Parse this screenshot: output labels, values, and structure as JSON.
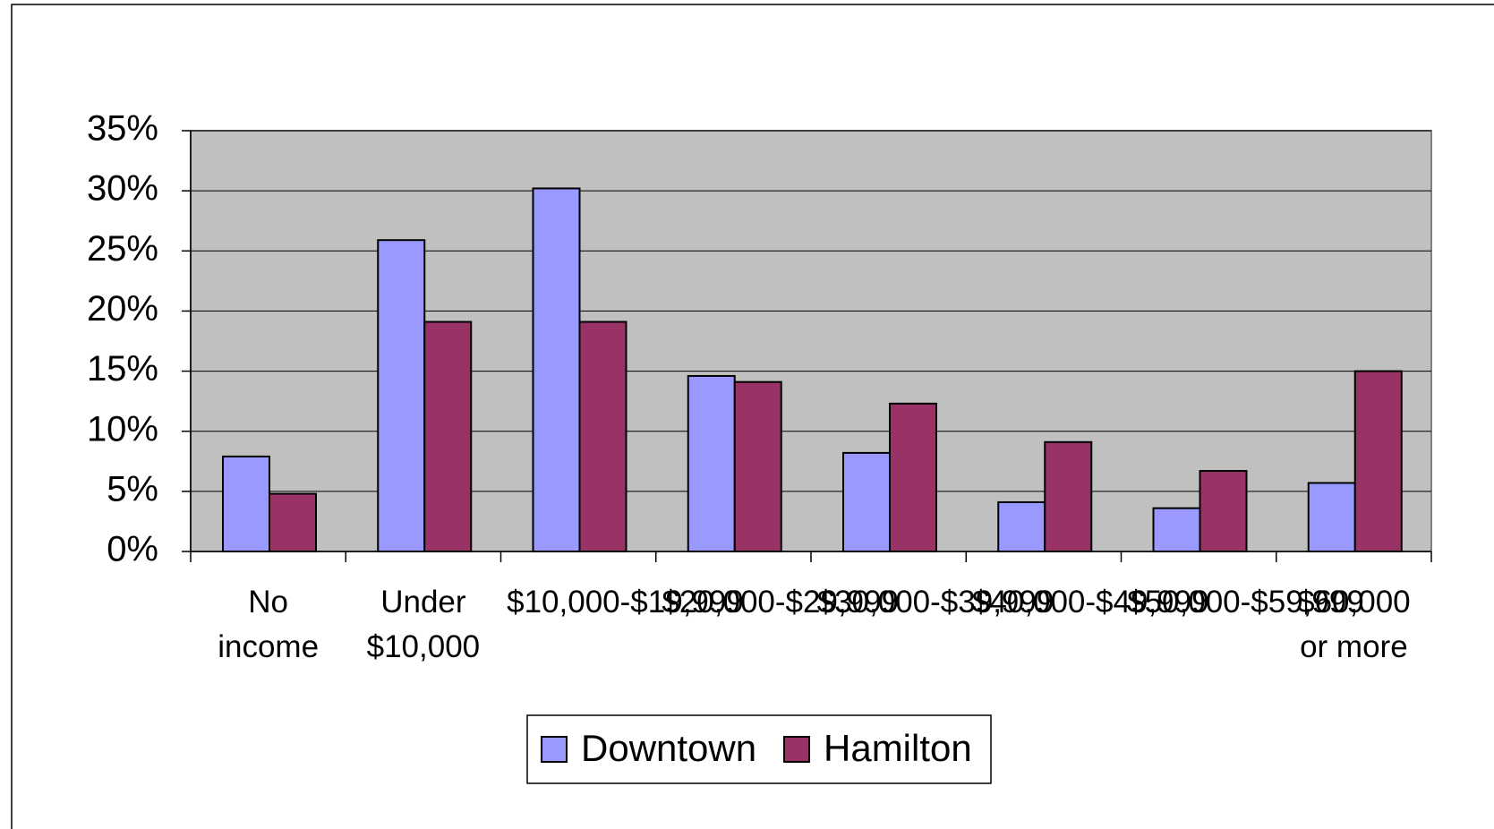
{
  "chart_data": {
    "type": "bar",
    "categories": [
      "No income",
      "Under $10,000",
      "$10,000-$19,999",
      "$20,000-$29,999",
      "$30,000-$39,999",
      "$40,000-$49,999",
      "$50,000-$59,999",
      "$60,000 or more"
    ],
    "series": [
      {
        "name": "Downtown",
        "color": "#9999ff",
        "values": [
          7.9,
          25.9,
          30.2,
          14.6,
          8.2,
          4.1,
          3.6,
          5.7
        ]
      },
      {
        "name": "Hamilton",
        "color": "#993366",
        "values": [
          4.8,
          19.1,
          19.1,
          14.1,
          12.3,
          9.1,
          6.7,
          15.0
        ]
      }
    ],
    "ylim": [
      0,
      35
    ],
    "yticks": [
      {
        "value": 0,
        "label": "0%"
      },
      {
        "value": 5,
        "label": "5%"
      },
      {
        "value": 10,
        "label": "10%"
      },
      {
        "value": 15,
        "label": "15%"
      },
      {
        "value": 20,
        "label": "20%"
      },
      {
        "value": 25,
        "label": "25%"
      },
      {
        "value": 30,
        "label": "30%"
      },
      {
        "value": 35,
        "label": "35%"
      }
    ],
    "grid": true,
    "legend": "bottom"
  }
}
